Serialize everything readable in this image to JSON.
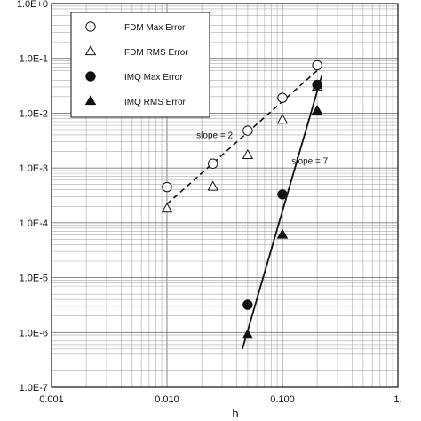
{
  "chart_data": {
    "type": "scatter",
    "xlabel": "h",
    "ylabel": "",
    "x_scale": "log",
    "y_scale": "log",
    "xlim": [
      0.001,
      1.0
    ],
    "ylim": [
      1e-07,
      1.0
    ],
    "grid": true,
    "legend_position": "top-left",
    "x_tick_values": [
      0.001,
      0.01,
      0.1,
      1.0
    ],
    "x_tick_labels": [
      "0.001",
      "0.010",
      "0.100",
      "1."
    ],
    "y_tick_values": [
      1.0,
      0.1,
      0.01,
      0.001,
      0.0001,
      1e-05,
      1e-06,
      1e-07
    ],
    "y_tick_labels": [
      "1.0E+0",
      "1.0E-1",
      "1.0E-2",
      "1.0E-3",
      "1.0E-4",
      "1.0E-5",
      "1.0E-6",
      "1.0E-7"
    ],
    "series": [
      {
        "name": "FDM Max Error",
        "marker": "open-circle",
        "x": [
          0.01,
          0.025,
          0.05,
          0.1,
          0.2
        ],
        "y": [
          0.00045,
          0.0012,
          0.0048,
          0.019,
          0.075
        ]
      },
      {
        "name": "FDM RMS Error",
        "marker": "open-triangle",
        "x": [
          0.01,
          0.025,
          0.05,
          0.1,
          0.2
        ],
        "y": [
          0.00018,
          0.00045,
          0.0017,
          0.0075,
          0.03
        ]
      },
      {
        "name": "IMQ Max Error",
        "marker": "filled-circle",
        "x": [
          0.05,
          0.1,
          0.2
        ],
        "y": [
          3.2e-06,
          0.00033,
          0.033
        ]
      },
      {
        "name": "IMQ RMS Error",
        "marker": "filled-triangle",
        "x": [
          0.05,
          0.1,
          0.2
        ],
        "y": [
          9e-07,
          6e-05,
          0.011
        ]
      }
    ],
    "fit_lines": [
      {
        "style": "dashed",
        "x": [
          0.01,
          0.2
        ],
        "y": [
          0.00022,
          0.06
        ]
      },
      {
        "style": "solid",
        "x": [
          0.045,
          0.22
        ],
        "y": [
          5e-07,
          0.05
        ]
      }
    ],
    "annotations": [
      {
        "text": "slope = 2",
        "x": 0.018,
        "y": 0.0035
      },
      {
        "text": "slope = 7",
        "x": 0.12,
        "y": 0.0012
      }
    ]
  }
}
